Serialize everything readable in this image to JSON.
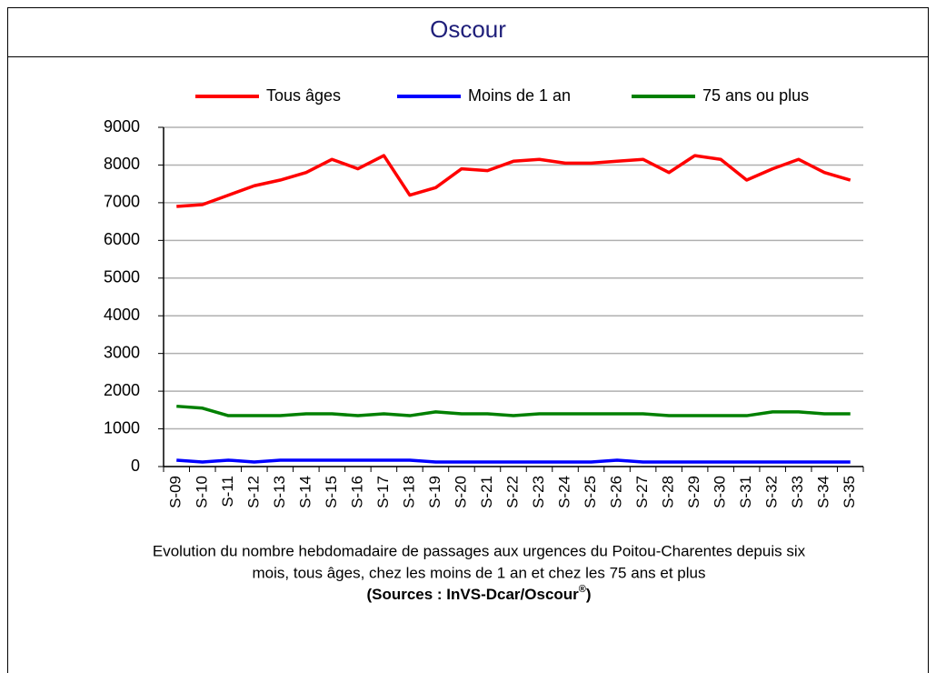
{
  "chart_data": {
    "type": "line",
    "title": "Oscour",
    "categories": [
      "S-09",
      "S-10",
      "S-11",
      "S-12",
      "S-13",
      "S-14",
      "S-15",
      "S-16",
      "S-17",
      "S-18",
      "S-19",
      "S-20",
      "S-21",
      "S-22",
      "S-23",
      "S-24",
      "S-25",
      "S-26",
      "S-27",
      "S-28",
      "S-29",
      "S-30",
      "S-31",
      "S-32",
      "S-33",
      "S-34",
      "S-35"
    ],
    "series": [
      {
        "name": "Tous âges",
        "color": "#ff0000",
        "values": [
          6900,
          6950,
          7200,
          7450,
          7600,
          7800,
          8150,
          7900,
          8250,
          7200,
          7400,
          7900,
          7850,
          8100,
          8150,
          8050,
          8050,
          8100,
          8150,
          7800,
          8250,
          8150,
          7600,
          7900,
          8150,
          7800,
          7600
        ]
      },
      {
        "name": "Moins de 1 an",
        "color": "#0000ff",
        "values": [
          170,
          120,
          170,
          120,
          170,
          170,
          170,
          170,
          170,
          170,
          120,
          120,
          120,
          120,
          120,
          120,
          120,
          170,
          120,
          120,
          120,
          120,
          120,
          120,
          120,
          120,
          120
        ]
      },
      {
        "name": "75 ans ou plus",
        "color": "#008000",
        "values": [
          1600,
          1550,
          1350,
          1350,
          1350,
          1400,
          1400,
          1350,
          1400,
          1350,
          1450,
          1400,
          1400,
          1350,
          1400,
          1400,
          1400,
          1400,
          1400,
          1350,
          1350,
          1350,
          1350,
          1450,
          1450,
          1400,
          1400
        ]
      }
    ],
    "ylim": [
      0,
      9000
    ],
    "yticks": [
      0,
      1000,
      2000,
      3000,
      4000,
      5000,
      6000,
      7000,
      8000,
      9000
    ],
    "grid": true,
    "legend": "top",
    "caption": [
      "Evolution du nombre hebdomadaire de passages aux urgences du Poitou-Charentes depuis six",
      "mois, tous âges, chez les moins de 1 an et chez les 75 ans  et plus"
    ],
    "source": [
      "(Sources : InVS-Dcar/Oscour",
      "®",
      ")"
    ]
  }
}
